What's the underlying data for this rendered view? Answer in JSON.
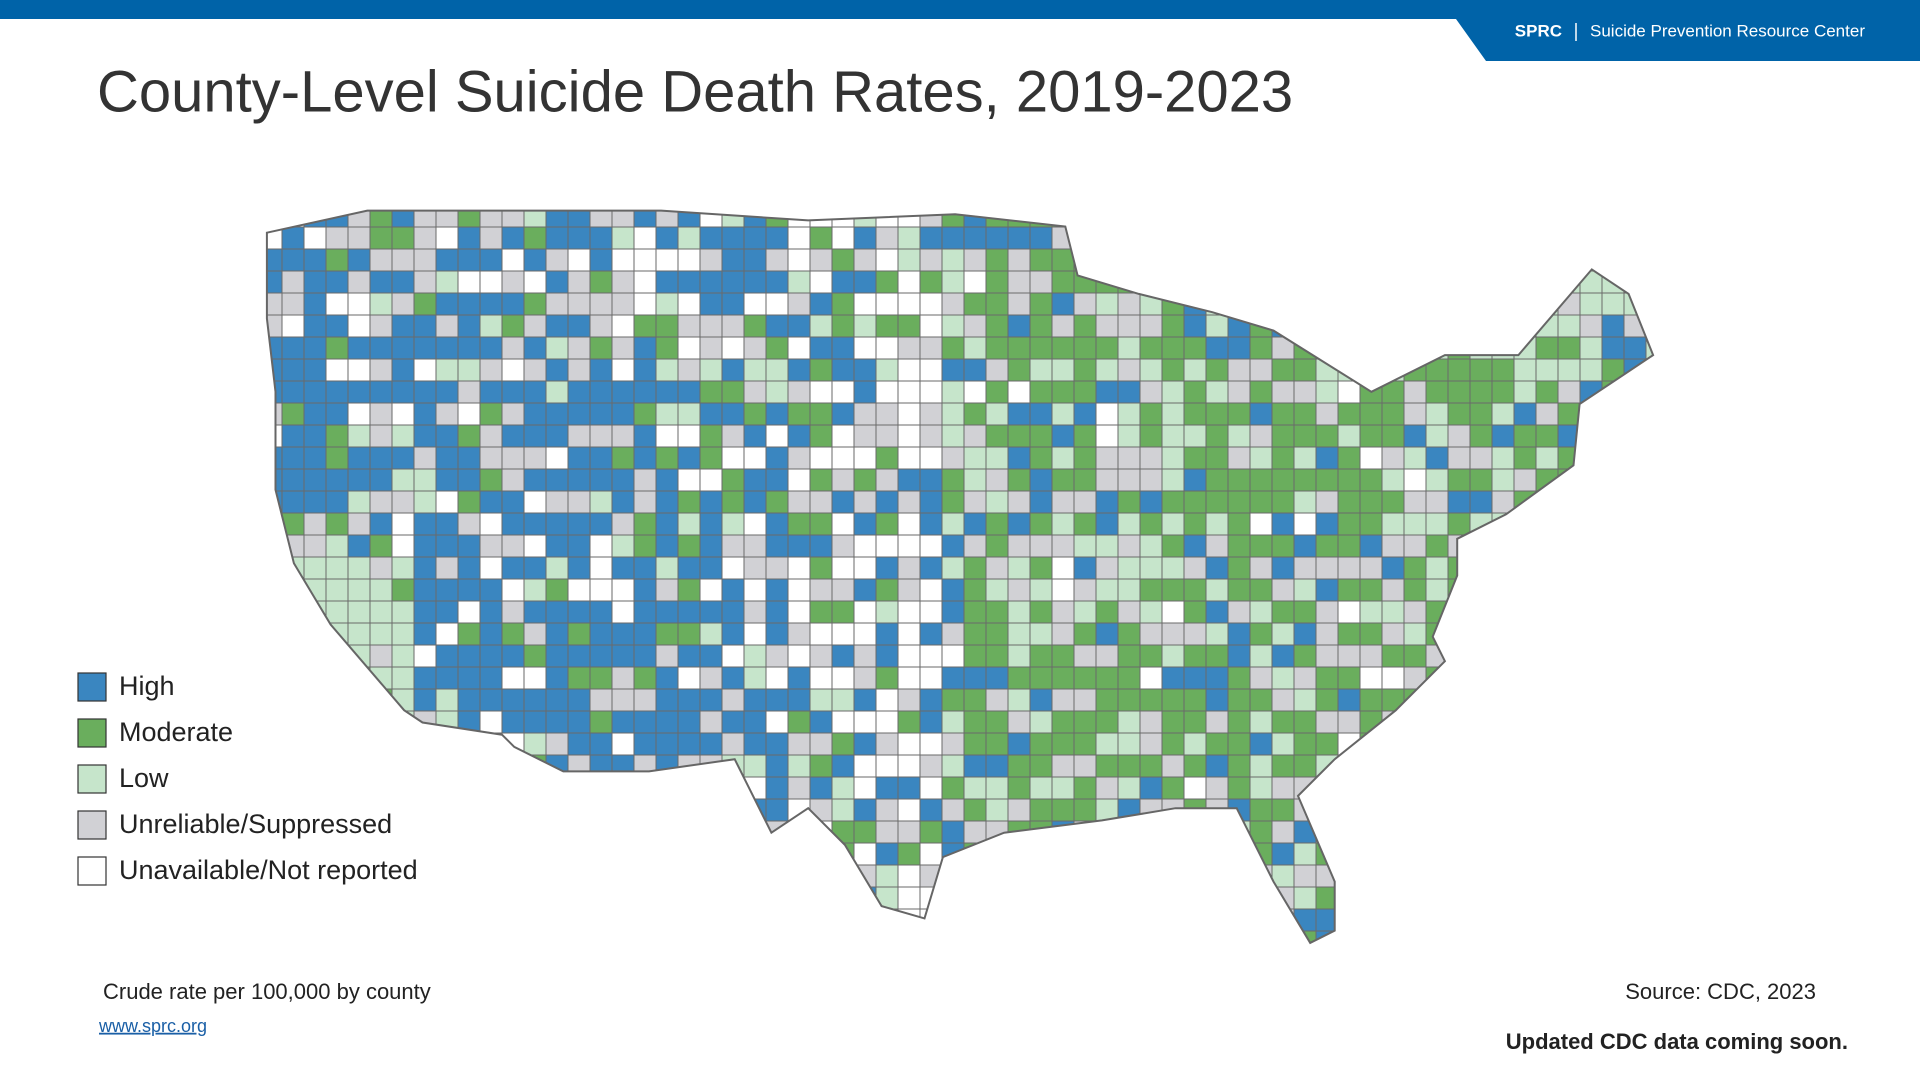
{
  "header": {
    "brand": "SPRC",
    "org": "Suicide Prevention Resource Center"
  },
  "title": "County-Level Suicide Death Rates, 2019-2023",
  "legend": {
    "items": [
      {
        "label": "High",
        "color": "#3a86c0"
      },
      {
        "label": "Moderate",
        "color": "#6aae5d"
      },
      {
        "label": "Low",
        "color": "#c6e5cb"
      },
      {
        "label": "Unreliable/Suppressed",
        "color": "#d1d1d5"
      },
      {
        "label": "Unavailable/Not reported",
        "color": "#ffffff"
      }
    ]
  },
  "footer": {
    "note": "Crude rate per 100,000 by county",
    "link": "www.sprc.org",
    "source": "Source: CDC, 2023",
    "update": "Updated CDC data coming soon."
  }
}
